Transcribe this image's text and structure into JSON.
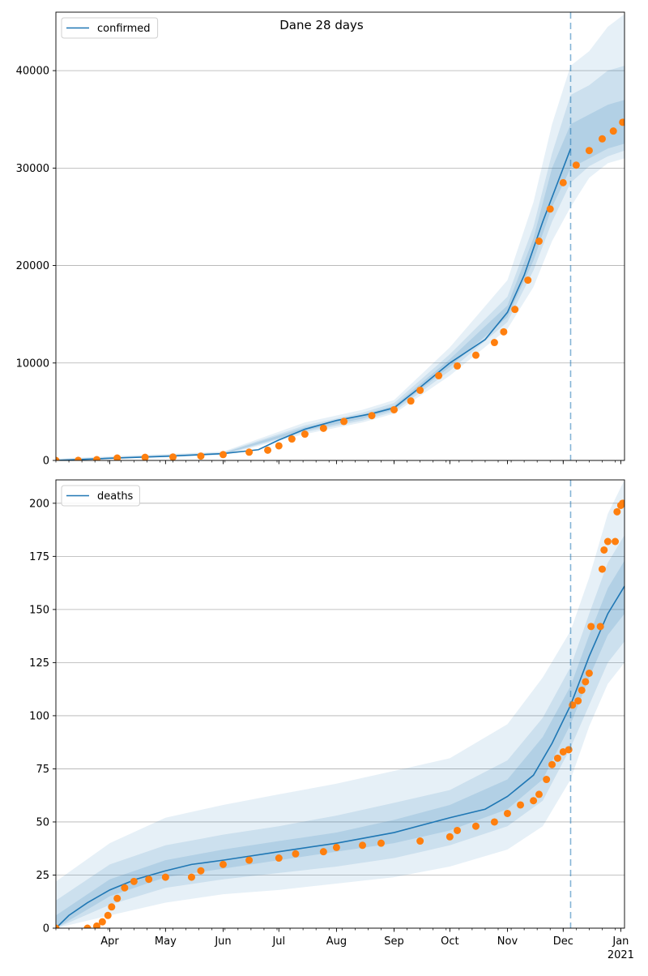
{
  "figure_title": "Dane 28 days",
  "colors": {
    "model_line": "#1f77b4",
    "band": "#1f77b4",
    "observed_points": "#ff7f0e",
    "grid": "#b0b0b0",
    "forecast_marker": "#1f77b4"
  },
  "chart_data": [
    {
      "type": "line",
      "panel": "top",
      "legend": {
        "label": "confirmed",
        "placement": "upper-left"
      },
      "grid": "y",
      "ylim": [
        0,
        46000
      ],
      "yticks": [
        0,
        10000,
        20000,
        30000,
        40000
      ],
      "xlim": [
        "2020-03-03",
        "2021-01-03"
      ],
      "forecast_start": "2020-12-05",
      "model_mean": [
        [
          "2020-03-03",
          0
        ],
        [
          "2020-04-01",
          220
        ],
        [
          "2020-05-01",
          420
        ],
        [
          "2020-06-01",
          700
        ],
        [
          "2020-06-20",
          1100
        ],
        [
          "2020-07-01",
          2100
        ],
        [
          "2020-07-15",
          3200
        ],
        [
          "2020-08-01",
          4100
        ],
        [
          "2020-08-20",
          4800
        ],
        [
          "2020-09-01",
          5400
        ],
        [
          "2020-09-15",
          7500
        ],
        [
          "2020-10-01",
          10000
        ],
        [
          "2020-10-20",
          12400
        ],
        [
          "2020-11-01",
          15200
        ],
        [
          "2020-11-10",
          19000
        ],
        [
          "2020-11-20",
          24500
        ],
        [
          "2020-11-28",
          28500
        ],
        [
          "2020-12-05",
          32000
        ]
      ],
      "bands": [
        {
          "level": "outer",
          "points": [
            [
              "2020-03-03",
              0,
              200
            ],
            [
              "2020-06-01",
              550,
              900
            ],
            [
              "2020-07-15",
              2700,
              3900
            ],
            [
              "2020-08-15",
              3900,
              5200
            ],
            [
              "2020-09-01",
              4800,
              6200
            ],
            [
              "2020-10-01",
              8700,
              11600
            ],
            [
              "2020-11-01",
              13500,
              18500
            ],
            [
              "2020-11-15",
              17800,
              26500
            ],
            [
              "2020-11-25",
              22500,
              34500
            ],
            [
              "2020-12-05",
              26000,
              40500
            ],
            [
              "2020-12-15",
              29000,
              42000
            ],
            [
              "2020-12-25",
              30500,
              44500
            ],
            [
              "2021-01-03",
              31000,
              45800
            ]
          ]
        },
        {
          "level": "middle",
          "points": [
            [
              "2020-03-03",
              0,
              120
            ],
            [
              "2020-06-01",
              600,
              820
            ],
            [
              "2020-07-15",
              2900,
              3600
            ],
            [
              "2020-08-15",
              4100,
              4900
            ],
            [
              "2020-09-01",
              5000,
              5900
            ],
            [
              "2020-10-01",
              9200,
              10900
            ],
            [
              "2020-11-01",
              14200,
              16800
            ],
            [
              "2020-11-15",
              19500,
              24000
            ],
            [
              "2020-11-25",
              24500,
              31500
            ],
            [
              "2020-12-05",
              28500,
              37500
            ],
            [
              "2020-12-15",
              30200,
              38500
            ],
            [
              "2020-12-25",
              31200,
              40000
            ],
            [
              "2021-01-03",
              31800,
              40500
            ]
          ]
        },
        {
          "level": "inner",
          "points": [
            [
              "2020-03-03",
              0,
              60
            ],
            [
              "2020-06-01",
              650,
              760
            ],
            [
              "2020-07-15",
              3050,
              3400
            ],
            [
              "2020-08-15",
              4300,
              4700
            ],
            [
              "2020-09-01",
              5200,
              5600
            ],
            [
              "2020-10-01",
              9600,
              10400
            ],
            [
              "2020-11-01",
              14700,
              15900
            ],
            [
              "2020-11-15",
              20500,
              22800
            ],
            [
              "2020-11-25",
              26000,
              30000
            ],
            [
              "2020-12-05",
              30000,
              34500
            ],
            [
              "2020-12-15",
              31000,
              35500
            ],
            [
              "2020-12-25",
              32000,
              36500
            ],
            [
              "2021-01-03",
              32500,
              37000
            ]
          ]
        }
      ],
      "observed": [
        [
          "2020-03-03",
          0
        ],
        [
          "2020-03-15",
          10
        ],
        [
          "2020-03-25",
          80
        ],
        [
          "2020-04-05",
          250
        ],
        [
          "2020-04-20",
          320
        ],
        [
          "2020-05-05",
          350
        ],
        [
          "2020-05-20",
          450
        ],
        [
          "2020-06-01",
          600
        ],
        [
          "2020-06-15",
          850
        ],
        [
          "2020-06-25",
          1050
        ],
        [
          "2020-07-01",
          1500
        ],
        [
          "2020-07-08",
          2200
        ],
        [
          "2020-07-15",
          2700
        ],
        [
          "2020-07-25",
          3300
        ],
        [
          "2020-08-05",
          4000
        ],
        [
          "2020-08-20",
          4600
        ],
        [
          "2020-09-01",
          5200
        ],
        [
          "2020-09-10",
          6100
        ],
        [
          "2020-09-15",
          7200
        ],
        [
          "2020-09-25",
          8700
        ],
        [
          "2020-10-05",
          9700
        ],
        [
          "2020-10-15",
          10800
        ],
        [
          "2020-10-25",
          12100
        ],
        [
          "2020-10-30",
          13200
        ],
        [
          "2020-11-05",
          15500
        ],
        [
          "2020-11-12",
          18500
        ],
        [
          "2020-11-18",
          22500
        ],
        [
          "2020-11-24",
          25800
        ],
        [
          "2020-12-01",
          28500
        ],
        [
          "2020-12-08",
          30300
        ],
        [
          "2020-12-15",
          31800
        ],
        [
          "2020-12-22",
          33000
        ],
        [
          "2020-12-28",
          33800
        ],
        [
          "2021-01-02",
          34700
        ]
      ]
    },
    {
      "type": "line",
      "panel": "bottom",
      "legend": {
        "label": "deaths",
        "placement": "upper-left"
      },
      "grid": "y",
      "ylim": [
        0,
        211
      ],
      "yticks": [
        0,
        25,
        50,
        75,
        100,
        125,
        150,
        175,
        200
      ],
      "xlim": [
        "2020-03-03",
        "2021-01-03"
      ],
      "xtick_labels": [
        "Apr",
        "May",
        "Jun",
        "Jul",
        "Aug",
        "Sep",
        "Oct",
        "Nov",
        "Dec",
        "Jan"
      ],
      "xtick_dates": [
        "2020-04-01",
        "2020-05-01",
        "2020-06-01",
        "2020-07-01",
        "2020-08-01",
        "2020-09-01",
        "2020-10-01",
        "2020-11-01",
        "2020-12-01",
        "2021-01-01"
      ],
      "year_label": "2021",
      "forecast_start": "2020-12-05",
      "model_mean": [
        [
          "2020-03-03",
          0
        ],
        [
          "2020-03-10",
          6
        ],
        [
          "2020-03-20",
          12
        ],
        [
          "2020-04-01",
          18
        ],
        [
          "2020-04-15",
          23
        ],
        [
          "2020-05-01",
          27
        ],
        [
          "2020-05-15",
          30
        ],
        [
          "2020-06-01",
          32
        ],
        [
          "2020-07-01",
          36
        ],
        [
          "2020-08-01",
          40
        ],
        [
          "2020-09-01",
          45
        ],
        [
          "2020-10-01",
          52
        ],
        [
          "2020-10-20",
          56
        ],
        [
          "2020-11-01",
          62
        ],
        [
          "2020-11-15",
          72
        ],
        [
          "2020-11-25",
          87
        ],
        [
          "2020-12-05",
          105
        ],
        [
          "2020-12-15",
          128
        ],
        [
          "2020-12-25",
          148
        ],
        [
          "2021-01-03",
          161
        ]
      ],
      "bands": [
        {
          "level": "outer",
          "points": [
            [
              "2020-03-03",
              0,
              22
            ],
            [
              "2020-04-01",
              6,
              40
            ],
            [
              "2020-05-01",
              12,
              52
            ],
            [
              "2020-06-01",
              16,
              58
            ],
            [
              "2020-07-01",
              18,
              63
            ],
            [
              "2020-08-01",
              21,
              68
            ],
            [
              "2020-09-01",
              24,
              74
            ],
            [
              "2020-10-01",
              29,
              80
            ],
            [
              "2020-11-01",
              37,
              96
            ],
            [
              "2020-11-20",
              48,
              118
            ],
            [
              "2020-12-05",
              70,
              140
            ],
            [
              "2020-12-15",
              95,
              165
            ],
            [
              "2020-12-25",
              115,
              195
            ],
            [
              "2021-01-03",
              125,
              211
            ]
          ]
        },
        {
          "level": "middle",
          "points": [
            [
              "2020-03-03",
              0,
              13
            ],
            [
              "2020-04-01",
              11,
              30
            ],
            [
              "2020-05-01",
              19,
              39
            ],
            [
              "2020-06-01",
              23,
              44
            ],
            [
              "2020-07-01",
              26,
              48
            ],
            [
              "2020-08-01",
              29,
              53
            ],
            [
              "2020-09-01",
              33,
              59
            ],
            [
              "2020-10-01",
              39,
              65
            ],
            [
              "2020-11-01",
              48,
              79
            ],
            [
              "2020-11-20",
              60,
              99
            ],
            [
              "2020-12-05",
              85,
              123
            ],
            [
              "2020-12-15",
              105,
              148
            ],
            [
              "2020-12-25",
              125,
              172
            ],
            [
              "2021-01-03",
              135,
              185
            ]
          ]
        },
        {
          "level": "inner",
          "points": [
            [
              "2020-03-03",
              0,
              6
            ],
            [
              "2020-04-01",
              15,
              23
            ],
            [
              "2020-05-01",
              24,
              32
            ],
            [
              "2020-06-01",
              28,
              37
            ],
            [
              "2020-07-01",
              32,
              41
            ],
            [
              "2020-08-01",
              36,
              45
            ],
            [
              "2020-09-01",
              40,
              51
            ],
            [
              "2020-10-01",
              46,
              58
            ],
            [
              "2020-11-01",
              56,
              70
            ],
            [
              "2020-11-20",
              70,
              90
            ],
            [
              "2020-12-05",
              96,
              114
            ],
            [
              "2020-12-15",
              118,
              138
            ],
            [
              "2020-12-25",
              138,
              160
            ],
            [
              "2021-01-03",
              148,
              173
            ]
          ]
        }
      ],
      "observed": [
        [
          "2020-03-03",
          0
        ],
        [
          "2020-03-20",
          0
        ],
        [
          "2020-03-25",
          1
        ],
        [
          "2020-03-28",
          3
        ],
        [
          "2020-03-31",
          6
        ],
        [
          "2020-04-02",
          10
        ],
        [
          "2020-04-05",
          14
        ],
        [
          "2020-04-09",
          19
        ],
        [
          "2020-04-14",
          22
        ],
        [
          "2020-04-22",
          23
        ],
        [
          "2020-05-01",
          24
        ],
        [
          "2020-05-15",
          24
        ],
        [
          "2020-05-20",
          27
        ],
        [
          "2020-06-01",
          30
        ],
        [
          "2020-06-15",
          32
        ],
        [
          "2020-07-01",
          33
        ],
        [
          "2020-07-10",
          35
        ],
        [
          "2020-07-25",
          36
        ],
        [
          "2020-08-01",
          38
        ],
        [
          "2020-08-15",
          39
        ],
        [
          "2020-08-25",
          40
        ],
        [
          "2020-09-15",
          41
        ],
        [
          "2020-10-01",
          43
        ],
        [
          "2020-10-05",
          46
        ],
        [
          "2020-10-15",
          48
        ],
        [
          "2020-10-25",
          50
        ],
        [
          "2020-11-01",
          54
        ],
        [
          "2020-11-08",
          58
        ],
        [
          "2020-11-15",
          60
        ],
        [
          "2020-11-18",
          63
        ],
        [
          "2020-11-22",
          70
        ],
        [
          "2020-11-25",
          77
        ],
        [
          "2020-11-28",
          80
        ],
        [
          "2020-12-01",
          83
        ],
        [
          "2020-12-04",
          84
        ],
        [
          "2020-12-06",
          105
        ],
        [
          "2020-12-09",
          107
        ],
        [
          "2020-12-11",
          112
        ],
        [
          "2020-12-13",
          116
        ],
        [
          "2020-12-15",
          120
        ],
        [
          "2020-12-16",
          142
        ],
        [
          "2020-12-21",
          142
        ],
        [
          "2020-12-22",
          169
        ],
        [
          "2020-12-23",
          178
        ],
        [
          "2020-12-25",
          182
        ],
        [
          "2020-12-29",
          182
        ],
        [
          "2020-12-30",
          196
        ],
        [
          "2021-01-01",
          199
        ],
        [
          "2021-01-02",
          200
        ]
      ]
    }
  ]
}
